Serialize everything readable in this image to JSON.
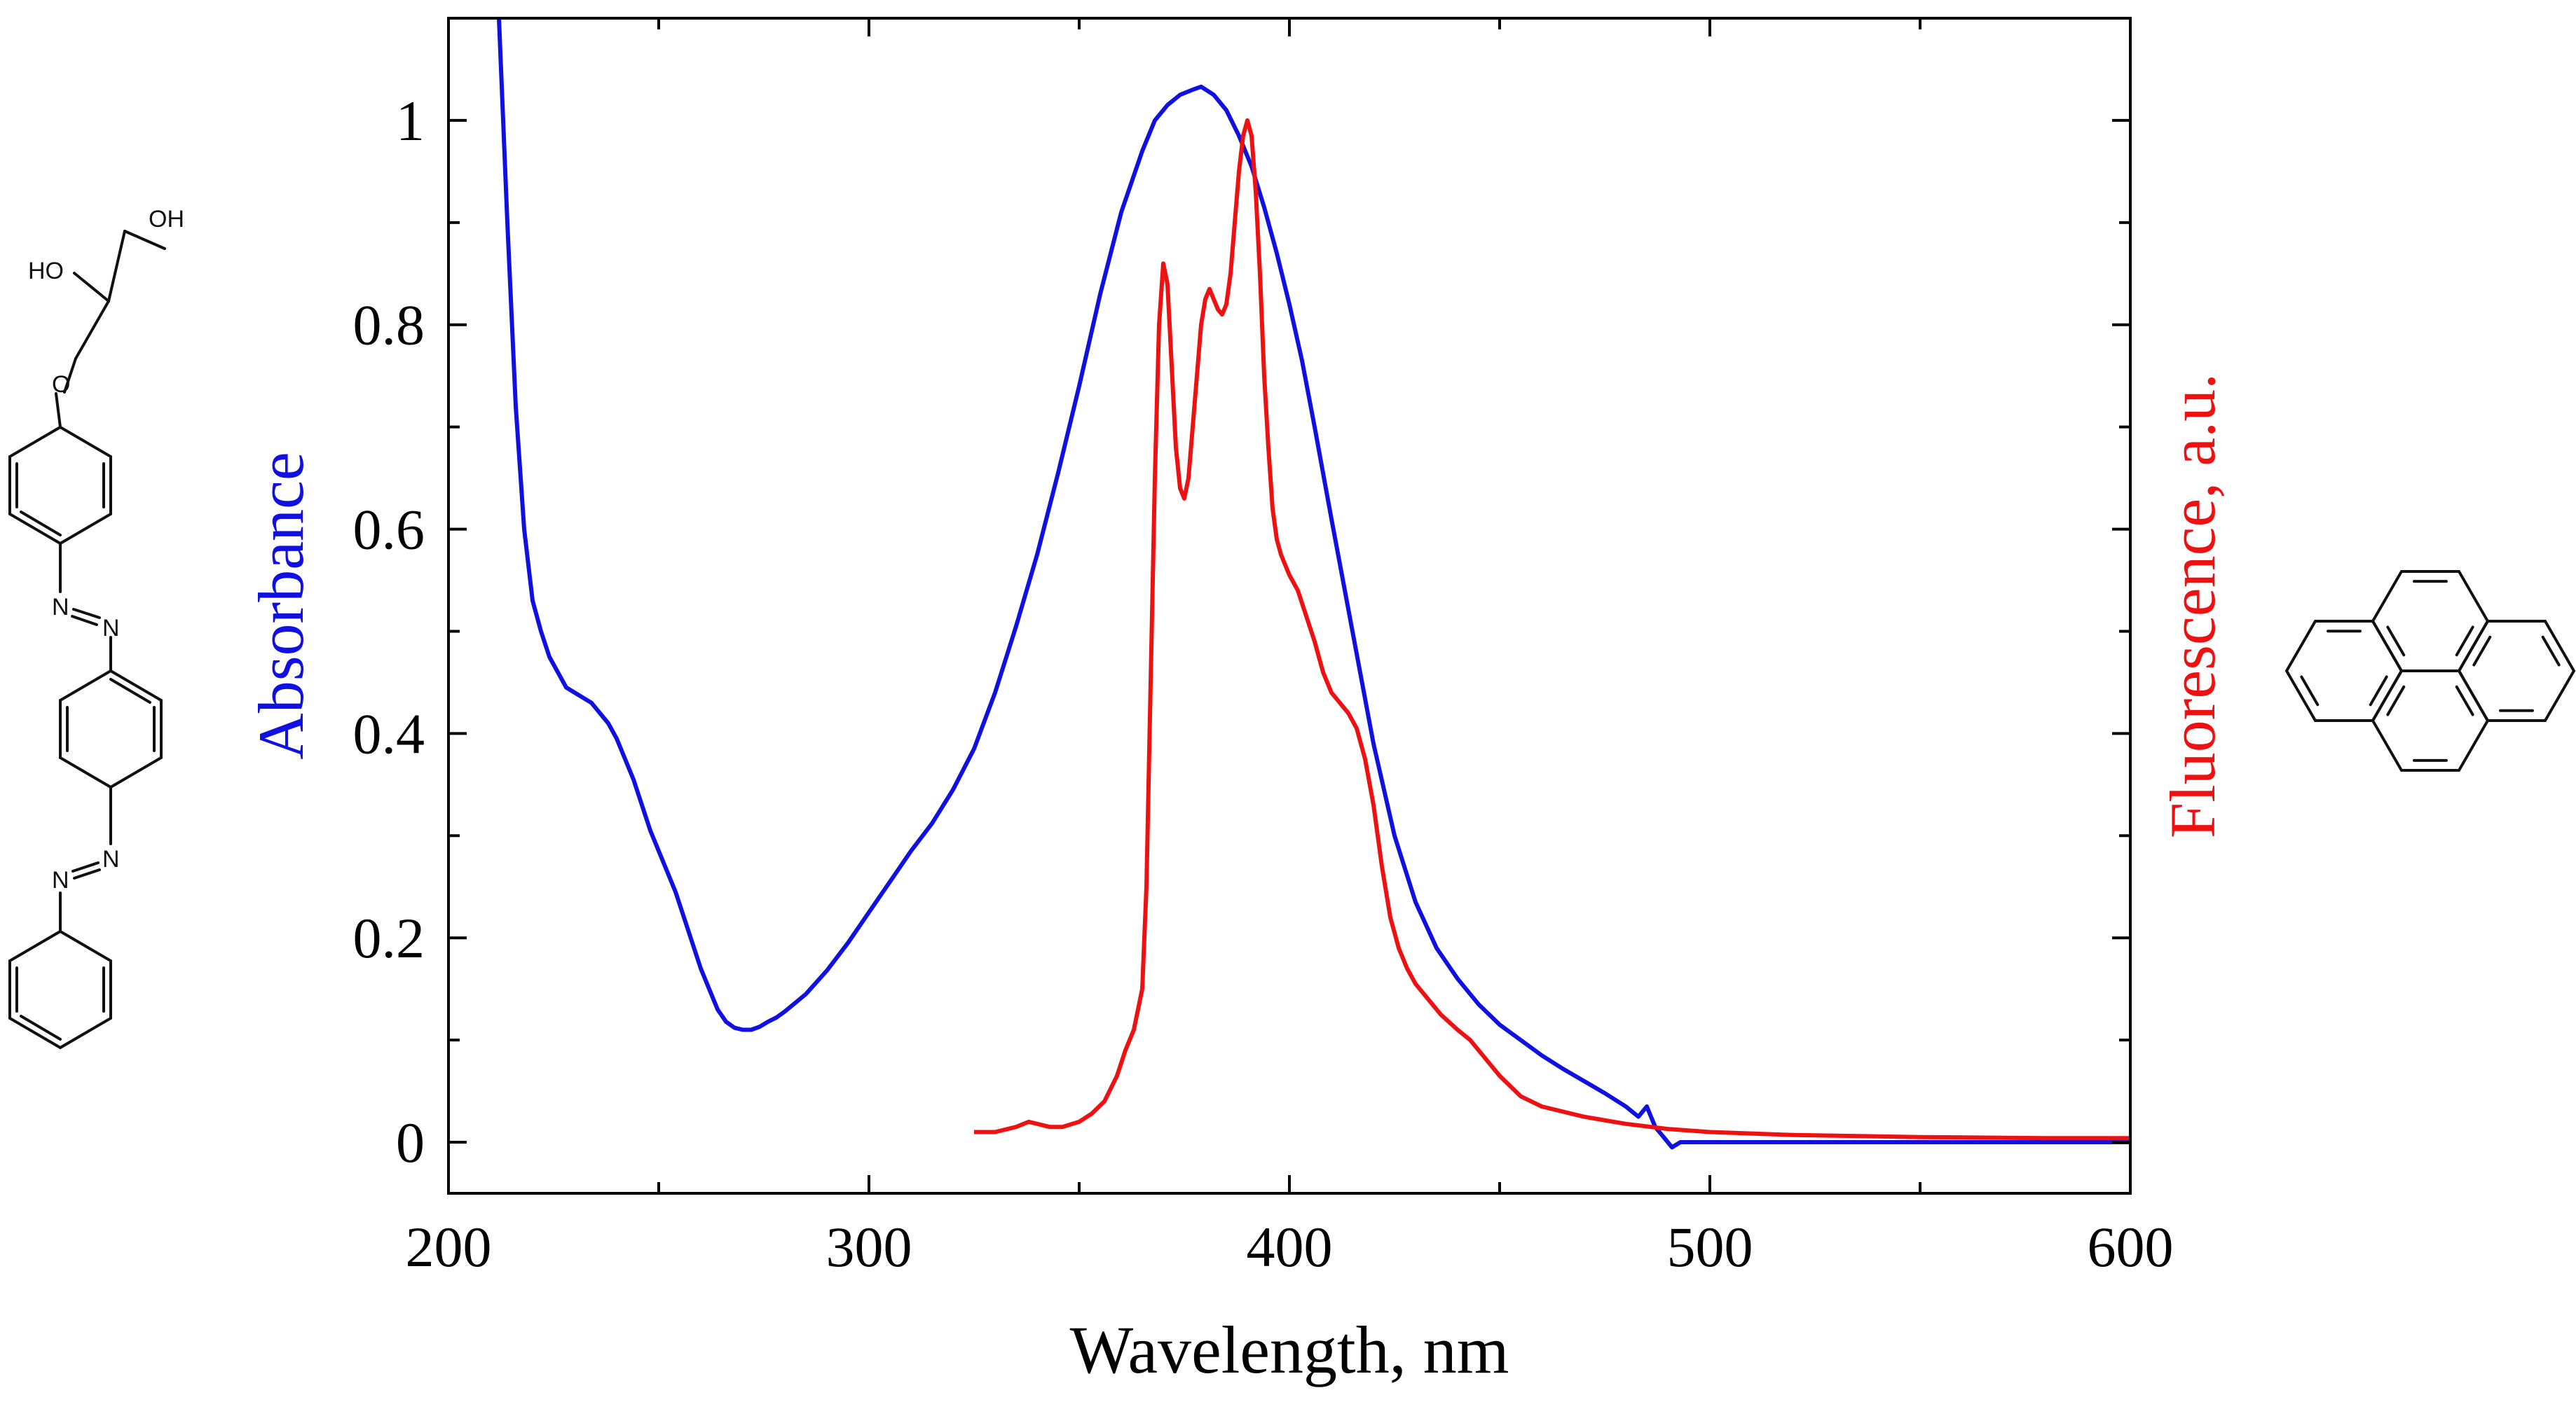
{
  "chart_data": {
    "type": "line",
    "title": "",
    "xlabel": "Wavelength, nm",
    "ylabel": "Absorbance",
    "y2label": "Fluorescence, a.u.",
    "xlim": [
      200,
      600
    ],
    "ylim": [
      -0.05,
      1.1
    ],
    "xticks": [
      200,
      300,
      400,
      500,
      600
    ],
    "xtick_labels": [
      "200",
      "300",
      "400",
      "500",
      "600"
    ],
    "yticks": [
      0,
      0.2,
      0.4,
      0.6,
      0.8,
      1
    ],
    "ytick_labels": [
      "0",
      "0.2",
      "0.4",
      "0.6",
      "0.8",
      "1"
    ],
    "grid": false,
    "legend": "none",
    "series": [
      {
        "name": "Absorbance",
        "axis": "left",
        "color": "#1010e0",
        "x": [
          212,
          214,
          216,
          218,
          220,
          222,
          224,
          226,
          228,
          230,
          232,
          234,
          236,
          238,
          240,
          242,
          244,
          246,
          248,
          250,
          252,
          254,
          256,
          258,
          260,
          262,
          264,
          266,
          268,
          270,
          272,
          274,
          276,
          278,
          280,
          285,
          290,
          295,
          300,
          305,
          310,
          315,
          320,
          325,
          330,
          335,
          340,
          345,
          350,
          355,
          360,
          365,
          368,
          371,
          374,
          377,
          379,
          382,
          385,
          388,
          391,
          394,
          397,
          400,
          403,
          406,
          410,
          415,
          420,
          425,
          430,
          435,
          440,
          445,
          450,
          455,
          460,
          465,
          470,
          475,
          480,
          483,
          485,
          487,
          489,
          491,
          493,
          495,
          500,
          510,
          520,
          540,
          560,
          580,
          600
        ],
        "y": [
          1.1,
          0.9,
          0.72,
          0.6,
          0.53,
          0.5,
          0.475,
          0.46,
          0.445,
          0.44,
          0.435,
          0.43,
          0.42,
          0.41,
          0.395,
          0.375,
          0.355,
          0.33,
          0.305,
          0.285,
          0.265,
          0.245,
          0.22,
          0.195,
          0.17,
          0.15,
          0.13,
          0.118,
          0.112,
          0.11,
          0.11,
          0.113,
          0.118,
          0.122,
          0.128,
          0.145,
          0.168,
          0.195,
          0.225,
          0.255,
          0.285,
          0.312,
          0.345,
          0.385,
          0.44,
          0.505,
          0.575,
          0.655,
          0.74,
          0.83,
          0.91,
          0.97,
          1.0,
          1.015,
          1.025,
          1.03,
          1.033,
          1.025,
          1.01,
          0.985,
          0.955,
          0.915,
          0.87,
          0.82,
          0.765,
          0.7,
          0.61,
          0.5,
          0.39,
          0.3,
          0.235,
          0.19,
          0.16,
          0.135,
          0.115,
          0.1,
          0.085,
          0.072,
          0.06,
          0.048,
          0.035,
          0.025,
          0.035,
          0.015,
          0.005,
          -0.005,
          0.0,
          0.0,
          0.0,
          0.0,
          0.0,
          0.0,
          0.0,
          0.0,
          0.0
        ]
      },
      {
        "name": "Fluorescence",
        "axis": "right",
        "color": "#ee1111",
        "x": [
          325,
          330,
          335,
          338,
          340,
          343,
          346,
          350,
          353,
          356,
          359,
          361,
          363,
          365,
          366,
          367,
          368,
          369,
          370,
          371,
          372,
          373,
          374,
          375,
          376,
          377,
          378,
          379,
          380,
          381,
          382,
          383,
          384,
          385,
          386,
          387,
          388,
          389,
          390,
          391,
          392,
          393,
          394,
          395,
          396,
          397,
          398,
          399,
          400,
          402,
          404,
          406,
          408,
          410,
          412,
          414,
          416,
          418,
          420,
          422,
          424,
          426,
          428,
          430,
          433,
          436,
          440,
          443,
          446,
          450,
          455,
          460,
          470,
          480,
          490,
          500,
          520,
          550,
          580,
          600
        ],
        "y": [
          0.01,
          0.01,
          0.015,
          0.02,
          0.018,
          0.015,
          0.015,
          0.02,
          0.028,
          0.04,
          0.065,
          0.09,
          0.11,
          0.15,
          0.25,
          0.45,
          0.65,
          0.8,
          0.86,
          0.84,
          0.76,
          0.68,
          0.64,
          0.63,
          0.65,
          0.7,
          0.75,
          0.8,
          0.825,
          0.835,
          0.825,
          0.815,
          0.81,
          0.82,
          0.85,
          0.9,
          0.95,
          0.985,
          1.0,
          0.985,
          0.93,
          0.85,
          0.75,
          0.68,
          0.62,
          0.59,
          0.575,
          0.565,
          0.555,
          0.54,
          0.515,
          0.49,
          0.46,
          0.44,
          0.43,
          0.42,
          0.405,
          0.375,
          0.33,
          0.27,
          0.22,
          0.19,
          0.17,
          0.155,
          0.14,
          0.125,
          0.11,
          0.1,
          0.085,
          0.065,
          0.045,
          0.035,
          0.025,
          0.018,
          0.013,
          0.01,
          0.007,
          0.005,
          0.004,
          0.004
        ]
      }
    ]
  },
  "molecules": {
    "left": {
      "labels": {
        "oh_top": "OH",
        "oh_left": "HO",
        "oxygen": "O",
        "azo1_n1": "N",
        "azo1_n2": "N",
        "azo2_n1": "N",
        "azo2_n2": "N"
      }
    }
  },
  "colors": {
    "absorbance_axis_label": "#1010e0",
    "fluorescence_axis_label": "#ee1111",
    "axes": "#000000"
  }
}
